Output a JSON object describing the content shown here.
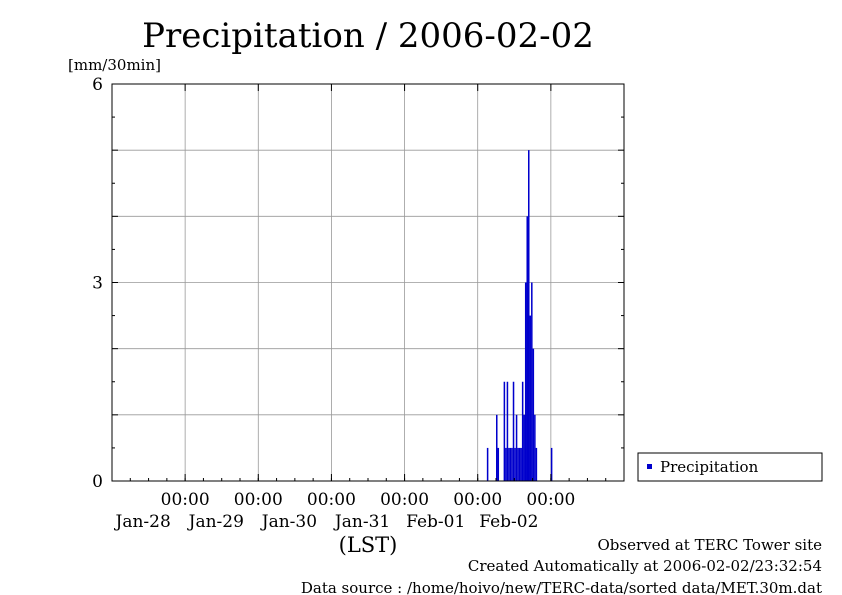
{
  "chart_data": {
    "type": "bar",
    "title": "Precipitation / 2006-02-02",
    "ylabel": "[mm/30min]",
    "xlabel": "(LST)",
    "ylim": [
      0,
      6
    ],
    "yticks": [
      "0",
      "3",
      "6"
    ],
    "xlim": [
      "2006-01-27 00:00",
      "2006-02-03 00:00"
    ],
    "xticks": [
      {
        "time": "00:00",
        "date": "Jan-28",
        "at": "2006-01-28 00:00"
      },
      {
        "time": "00:00",
        "date": "Jan-29",
        "at": "2006-01-29 00:00"
      },
      {
        "time": "00:00",
        "date": "Jan-30",
        "at": "2006-01-30 00:00"
      },
      {
        "time": "00:00",
        "date": "Jan-31",
        "at": "2006-01-31 00:00"
      },
      {
        "time": "00:00",
        "date": "Feb-01",
        "at": "2006-02-01 00:00"
      },
      {
        "time": "00:00",
        "date": "Feb-02",
        "at": "2006-02-02 00:00"
      }
    ],
    "grid": true,
    "legend_position": "right",
    "series": [
      {
        "name": "Precipitation",
        "color": "#0000cc",
        "points": [
          {
            "t": "2006-02-01 03:00",
            "v": 0.5
          },
          {
            "t": "2006-02-01 06:00",
            "v": 1.0
          },
          {
            "t": "2006-02-01 06:30",
            "v": 0.5
          },
          {
            "t": "2006-02-01 08:30",
            "v": 1.5
          },
          {
            "t": "2006-02-01 09:00",
            "v": 0.5
          },
          {
            "t": "2006-02-01 09:30",
            "v": 1.5
          },
          {
            "t": "2006-02-01 10:00",
            "v": 0.5
          },
          {
            "t": "2006-02-01 10:30",
            "v": 0.5
          },
          {
            "t": "2006-02-01 11:00",
            "v": 0.5
          },
          {
            "t": "2006-02-01 11:30",
            "v": 1.5
          },
          {
            "t": "2006-02-01 12:00",
            "v": 0.5
          },
          {
            "t": "2006-02-01 12:30",
            "v": 1.0
          },
          {
            "t": "2006-02-01 13:00",
            "v": 0.5
          },
          {
            "t": "2006-02-01 13:30",
            "v": 0.5
          },
          {
            "t": "2006-02-01 14:00",
            "v": 0.5
          },
          {
            "t": "2006-02-01 14:30",
            "v": 1.5
          },
          {
            "t": "2006-02-01 15:00",
            "v": 1.0
          },
          {
            "t": "2006-02-01 15:30",
            "v": 3.0
          },
          {
            "t": "2006-02-01 16:00",
            "v": 4.0
          },
          {
            "t": "2006-02-01 16:30",
            "v": 5.0
          },
          {
            "t": "2006-02-01 17:00",
            "v": 2.5
          },
          {
            "t": "2006-02-01 17:30",
            "v": 3.0
          },
          {
            "t": "2006-02-01 18:00",
            "v": 2.0
          },
          {
            "t": "2006-02-01 18:30",
            "v": 1.0
          },
          {
            "t": "2006-02-01 19:00",
            "v": 0.5
          },
          {
            "t": "2006-02-02 00:00",
            "v": 0.5
          }
        ]
      }
    ]
  },
  "footer": {
    "observed": "Observed at TERC Tower site",
    "created": "Created Automatically at 2006-02-02/23:32:54",
    "source": "Data source : /home/hoivo/new/TERC-data/sorted  data/MET.30m.dat"
  }
}
